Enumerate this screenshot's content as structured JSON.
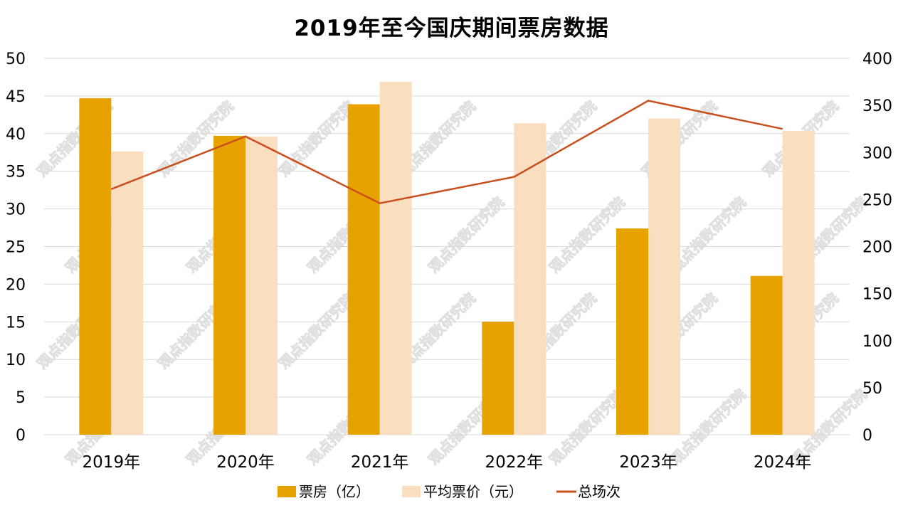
{
  "title": "2019年至今国庆期间票房数据",
  "watermark": "观点指数研究院",
  "colors": {
    "box_office": "#E8A200",
    "avg_price": "#FADEC0",
    "total_screenings": "#C8501E",
    "grid": "#D9D9D9"
  },
  "chart_data": {
    "type": "bar",
    "categories": [
      "2019年",
      "2020年",
      "2021年",
      "2022年",
      "2023年",
      "2024年"
    ],
    "series": [
      {
        "name": "票房（亿）",
        "type": "bar",
        "axis": "left",
        "values": [
          44.7,
          39.7,
          43.9,
          15.0,
          27.4,
          21.1
        ]
      },
      {
        "name": "平均票价（元）",
        "type": "bar",
        "axis": "right",
        "values": [
          301,
          317,
          375,
          331,
          336,
          323
        ]
      },
      {
        "name": "总场次",
        "type": "line",
        "axis": "right",
        "values": [
          261,
          317,
          246,
          274,
          355,
          325
        ]
      }
    ],
    "y_left": {
      "range": [
        0,
        50
      ],
      "ticks": [
        0,
        5,
        10,
        15,
        20,
        25,
        30,
        35,
        40,
        45,
        50
      ]
    },
    "y_right": {
      "range": [
        0,
        400
      ],
      "ticks": [
        0,
        50,
        100,
        150,
        200,
        250,
        300,
        350,
        400
      ]
    },
    "grid": true,
    "legend_position": "bottom"
  }
}
